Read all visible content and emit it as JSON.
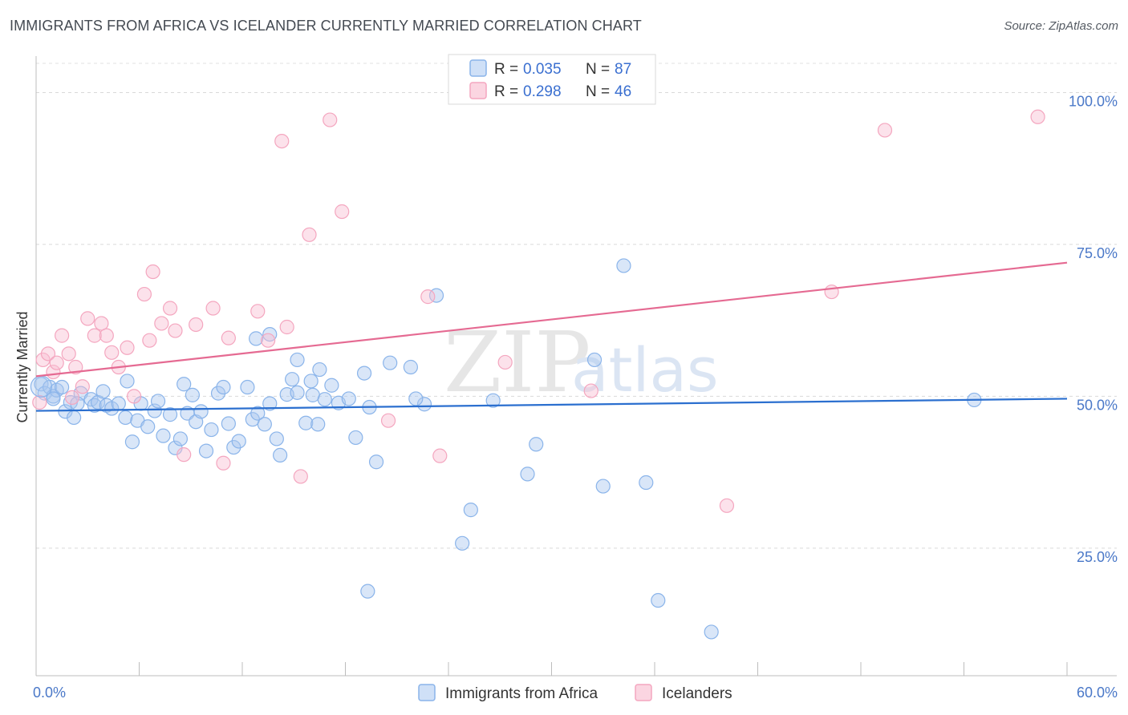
{
  "title": "IMMIGRANTS FROM AFRICA VS ICELANDER CURRENTLY MARRIED CORRELATION CHART",
  "source": "Source: ZipAtlas.com",
  "watermark": {
    "zip": "ZIP",
    "atlas": "atlas"
  },
  "legend": {
    "rows": [
      {
        "r_label": "R = ",
        "r_value": "0.035",
        "n_label": "N = ",
        "n_value": "87",
        "color": "#8ab4ea"
      },
      {
        "r_label": "R = ",
        "r_value": "0.298",
        "n_label": "N = ",
        "n_value": "46",
        "color": "#f4a6bf"
      }
    ]
  },
  "chart_data": {
    "type": "scatter",
    "ylabel": "Currently Married",
    "xlabel": "",
    "xlim": [
      0,
      60
    ],
    "ylim": [
      4,
      106
    ],
    "x_tick_labels": [
      {
        "value": 0,
        "label": "0.0%"
      },
      {
        "value": 60,
        "label": "60.0%"
      }
    ],
    "y_tick_labels": [
      {
        "value": 25,
        "label": "25.0%"
      },
      {
        "value": 50,
        "label": "50.0%"
      },
      {
        "value": 75,
        "label": "75.0%"
      },
      {
        "value": 100,
        "label": "100.0%"
      }
    ],
    "grid": "horizontal dashed",
    "series": [
      {
        "name": "Immigrants from Africa",
        "color": "#8ab4ea",
        "line_color": "#2b6fcf",
        "trend": [
          [
            0,
            47.6
          ],
          [
            60,
            49.6
          ]
        ],
        "points": [
          [
            0.3,
            52
          ],
          [
            0.5,
            50.5
          ],
          [
            0.8,
            51.5
          ],
          [
            1.0,
            50
          ],
          [
            1.2,
            51
          ],
          [
            1.5,
            51.5
          ],
          [
            1.7,
            47.5
          ],
          [
            2.0,
            49
          ],
          [
            2.2,
            46.5
          ],
          [
            2.6,
            50.5
          ],
          [
            3.2,
            49.5
          ],
          [
            3.4,
            48.5
          ],
          [
            3.6,
            49
          ],
          [
            3.9,
            50.8
          ],
          [
            4.1,
            48.5
          ],
          [
            4.4,
            48
          ],
          [
            4.8,
            48.8
          ],
          [
            5.2,
            46.5
          ],
          [
            5.6,
            42.5
          ],
          [
            5.9,
            46
          ],
          [
            6.1,
            48.8
          ],
          [
            6.5,
            45
          ],
          [
            6.9,
            47.6
          ],
          [
            7.1,
            49.2
          ],
          [
            7.4,
            43.5
          ],
          [
            7.8,
            47
          ],
          [
            8.1,
            41.5
          ],
          [
            8.4,
            43
          ],
          [
            8.8,
            47.2
          ],
          [
            9.1,
            50.2
          ],
          [
            9.3,
            45.8
          ],
          [
            9.6,
            47.5
          ],
          [
            9.9,
            41
          ],
          [
            10.2,
            44.5
          ],
          [
            10.6,
            50.5
          ],
          [
            10.9,
            51.5
          ],
          [
            11.2,
            45.5
          ],
          [
            11.5,
            41.6
          ],
          [
            11.8,
            42.6
          ],
          [
            12.3,
            51.5
          ],
          [
            12.6,
            46.2
          ],
          [
            12.9,
            47.2
          ],
          [
            13.3,
            45.4
          ],
          [
            13.6,
            48.8
          ],
          [
            14.0,
            43
          ],
          [
            14.2,
            40.3
          ],
          [
            14.6,
            50.3
          ],
          [
            14.9,
            52.8
          ],
          [
            15.2,
            50.6
          ],
          [
            15.7,
            45.6
          ],
          [
            16.1,
            50.2
          ],
          [
            16.4,
            45.4
          ],
          [
            16.8,
            49.5
          ],
          [
            17.2,
            51.8
          ],
          [
            17.6,
            48.9
          ],
          [
            18.2,
            49.6
          ],
          [
            18.6,
            43.2
          ],
          [
            19.1,
            53.8
          ],
          [
            19.4,
            48.2
          ],
          [
            19.8,
            39.2
          ],
          [
            13.6,
            60.2
          ],
          [
            15.2,
            56
          ],
          [
            16.5,
            54.4
          ],
          [
            20.6,
            55.5
          ],
          [
            21.8,
            54.8
          ],
          [
            22.6,
            48.7
          ],
          [
            23.3,
            66.6
          ],
          [
            24.8,
            25.8
          ],
          [
            25.3,
            31.3
          ],
          [
            19.3,
            17.9
          ],
          [
            16.0,
            52.5
          ],
          [
            12.8,
            59.5
          ],
          [
            8.6,
            52
          ],
          [
            5.3,
            52.5
          ],
          [
            2.4,
            48.8
          ],
          [
            1.0,
            49.6
          ],
          [
            36.2,
            16.4
          ],
          [
            34.2,
            71.5
          ],
          [
            32.5,
            56
          ],
          [
            33.0,
            35.2
          ],
          [
            35.5,
            35.8
          ],
          [
            39.3,
            11.2
          ],
          [
            54.6,
            49.4
          ],
          [
            28.6,
            37.2
          ],
          [
            29.1,
            42.1
          ],
          [
            26.6,
            49.3
          ],
          [
            22.1,
            49.6
          ]
        ]
      },
      {
        "name": "Icelanders",
        "color": "#f4a6bf",
        "line_color": "#e56a92",
        "trend": [
          [
            0,
            53.3
          ],
          [
            60,
            72
          ]
        ],
        "points": [
          [
            0.2,
            49
          ],
          [
            0.4,
            56
          ],
          [
            0.7,
            57
          ],
          [
            1.0,
            54
          ],
          [
            1.2,
            55.5
          ],
          [
            1.5,
            60
          ],
          [
            1.9,
            57
          ],
          [
            2.3,
            54.8
          ],
          [
            2.7,
            51.6
          ],
          [
            3.0,
            62.8
          ],
          [
            3.4,
            60
          ],
          [
            3.8,
            62
          ],
          [
            4.1,
            60
          ],
          [
            4.4,
            57.2
          ],
          [
            4.8,
            54.8
          ],
          [
            5.3,
            58
          ],
          [
            5.7,
            50
          ],
          [
            6.3,
            66.8
          ],
          [
            6.8,
            70.5
          ],
          [
            7.3,
            62
          ],
          [
            7.8,
            64.5
          ],
          [
            8.1,
            60.8
          ],
          [
            8.6,
            40.4
          ],
          [
            9.3,
            61.8
          ],
          [
            10.3,
            64.5
          ],
          [
            10.9,
            39
          ],
          [
            12.9,
            64
          ],
          [
            13.5,
            59.2
          ],
          [
            14.3,
            92
          ],
          [
            14.6,
            61.4
          ],
          [
            15.4,
            36.8
          ],
          [
            15.9,
            76.6
          ],
          [
            17.1,
            95.5
          ],
          [
            17.8,
            80.4
          ],
          [
            20.5,
            46
          ],
          [
            22.8,
            66.4
          ],
          [
            23.5,
            40.2
          ],
          [
            27.3,
            55.6
          ],
          [
            32.3,
            50.9
          ],
          [
            40.2,
            32
          ],
          [
            46.3,
            67.2
          ],
          [
            49.4,
            93.8
          ],
          [
            58.3,
            96
          ],
          [
            2.1,
            49.8
          ],
          [
            6.6,
            59.2
          ],
          [
            11.2,
            59.6
          ]
        ]
      }
    ]
  },
  "bottom_legend": [
    {
      "label": "Immigrants from Africa",
      "color": "#8ab4ea"
    },
    {
      "label": "Icelanders",
      "color": "#f4a6bf"
    }
  ]
}
